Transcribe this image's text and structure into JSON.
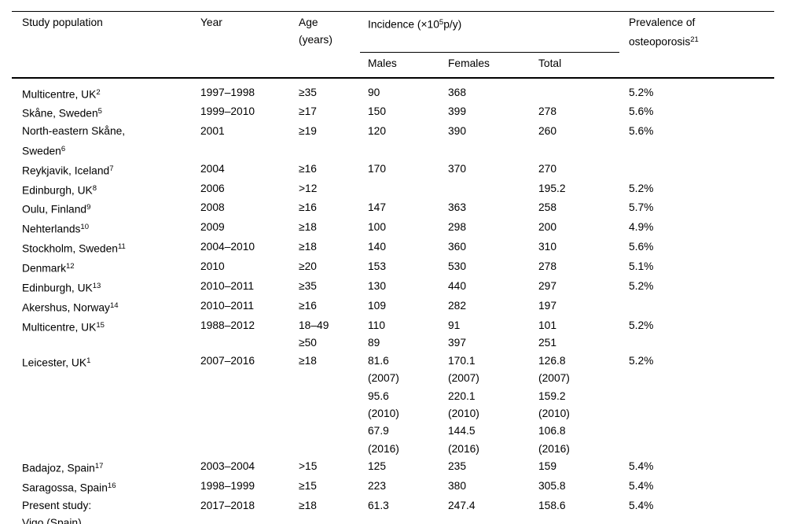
{
  "table": {
    "header": {
      "study": "Study population",
      "year": "Year",
      "age_line1": "Age",
      "age_line2": "(years)",
      "incidence_prefix": "Incidence (×10",
      "incidence_sup": "5",
      "incidence_suffix": "p/y)",
      "males": "Males",
      "females": "Females",
      "total": "Total",
      "prevalence_line1": "Prevalence of",
      "prevalence_line2": "osteoporosis",
      "prevalence_sup": "21"
    },
    "rows": [
      {
        "pop": [
          {
            "t": "Multicentre, UK",
            "r": "2"
          }
        ],
        "year": "1997–1998",
        "age": [
          "≥35"
        ],
        "males": [
          "90"
        ],
        "females": [
          "368"
        ],
        "total": [],
        "prev": "5.2%"
      },
      {
        "pop": [
          {
            "t": "Skåne, Sweden",
            "r": "5"
          }
        ],
        "year": "1999–2010",
        "age": [
          "≥17"
        ],
        "males": [
          "150"
        ],
        "females": [
          "399"
        ],
        "total": [
          "278"
        ],
        "prev": "5.6%"
      },
      {
        "pop": [
          {
            "t": "North-eastern Skåne,",
            "r": ""
          },
          {
            "t": "Sweden",
            "r": "6"
          }
        ],
        "year": "2001",
        "age": [
          "≥19"
        ],
        "males": [
          "120"
        ],
        "females": [
          "390"
        ],
        "total": [
          "260"
        ],
        "prev": "5.6%"
      },
      {
        "pop": [
          {
            "t": "Reykjavik, Iceland",
            "r": "7"
          }
        ],
        "year": "2004",
        "age": [
          "≥16"
        ],
        "males": [
          "170"
        ],
        "females": [
          "370"
        ],
        "total": [
          "270"
        ],
        "prev": ""
      },
      {
        "pop": [
          {
            "t": "Edinburgh, UK",
            "r": "8"
          }
        ],
        "year": "2006",
        "age": [
          ">12"
        ],
        "males": [],
        "females": [],
        "total": [
          "195.2"
        ],
        "prev": "5.2%"
      },
      {
        "pop": [
          {
            "t": "Oulu, Finland",
            "r": "9"
          }
        ],
        "year": "2008",
        "age": [
          "≥16"
        ],
        "males": [
          "147"
        ],
        "females": [
          "363"
        ],
        "total": [
          "258"
        ],
        "prev": "5.7%"
      },
      {
        "pop": [
          {
            "t": "Nehterlands",
            "r": "10"
          }
        ],
        "year": "2009",
        "age": [
          "≥18"
        ],
        "males": [
          "100"
        ],
        "females": [
          "298"
        ],
        "total": [
          "200"
        ],
        "prev": "4.9%"
      },
      {
        "pop": [
          {
            "t": "Stockholm, Sweden",
            "r": "11"
          }
        ],
        "year": "2004–2010",
        "age": [
          "≥18"
        ],
        "males": [
          "140"
        ],
        "females": [
          "360"
        ],
        "total": [
          "310"
        ],
        "prev": "5.6%"
      },
      {
        "pop": [
          {
            "t": "Denmark",
            "r": "12"
          }
        ],
        "year": "2010",
        "age": [
          "≥20"
        ],
        "males": [
          "153"
        ],
        "females": [
          "530"
        ],
        "total": [
          "278"
        ],
        "prev": "5.1%"
      },
      {
        "pop": [
          {
            "t": "Edinburgh, UK",
            "r": "13"
          }
        ],
        "year": "2010–2011",
        "age": [
          "≥35"
        ],
        "males": [
          "130"
        ],
        "females": [
          "440"
        ],
        "total": [
          "297"
        ],
        "prev": "5.2%"
      },
      {
        "pop": [
          {
            "t": "Akershus, Norway",
            "r": "14"
          }
        ],
        "year": "2010–2011",
        "age": [
          "≥16"
        ],
        "males": [
          "109"
        ],
        "females": [
          "282"
        ],
        "total": [
          "197"
        ],
        "prev": ""
      },
      {
        "pop": [
          {
            "t": "Multicentre, UK",
            "r": "15"
          }
        ],
        "year": "1988–2012",
        "age": [
          "18–49",
          "≥50"
        ],
        "males": [
          "110",
          "89"
        ],
        "females": [
          "91",
          "397"
        ],
        "total": [
          "101",
          "251"
        ],
        "prev": "5.2%"
      },
      {
        "pop": [
          {
            "t": "Leicester, UK",
            "r": "1"
          }
        ],
        "year": "2007–2016",
        "age": [
          "≥18"
        ],
        "males": [
          "81.6",
          "(2007)",
          "95.6",
          "(2010)",
          "67.9",
          "(2016)"
        ],
        "females": [
          "170.1",
          "(2007)",
          "220.1",
          "(2010)",
          "144.5",
          "(2016)"
        ],
        "total": [
          "126.8",
          "(2007)",
          "159.2",
          "(2010)",
          "106.8",
          "(2016)"
        ],
        "prev": "5.2%"
      },
      {
        "pop": [
          {
            "t": "Badajoz, Spain",
            "r": "17"
          }
        ],
        "year": "2003–2004",
        "age": [
          ">15"
        ],
        "males": [
          "125"
        ],
        "females": [
          "235"
        ],
        "total": [
          "159"
        ],
        "prev": "5.4%"
      },
      {
        "pop": [
          {
            "t": "Saragossa, Spain",
            "r": "16"
          }
        ],
        "year": "1998–1999",
        "age": [
          "≥15"
        ],
        "males": [
          "223"
        ],
        "females": [
          "380"
        ],
        "total": [
          "305.8"
        ],
        "prev": "5.4%"
      },
      {
        "pop": [
          {
            "t": "Present study:",
            "r": ""
          },
          {
            "t": "Vigo (Spain)",
            "r": ""
          }
        ],
        "year": "2017–2018",
        "age": [
          "≥18"
        ],
        "males": [
          "61.3"
        ],
        "females": [
          "247.4"
        ],
        "total": [
          "158.6"
        ],
        "prev": "5.4%"
      }
    ]
  }
}
